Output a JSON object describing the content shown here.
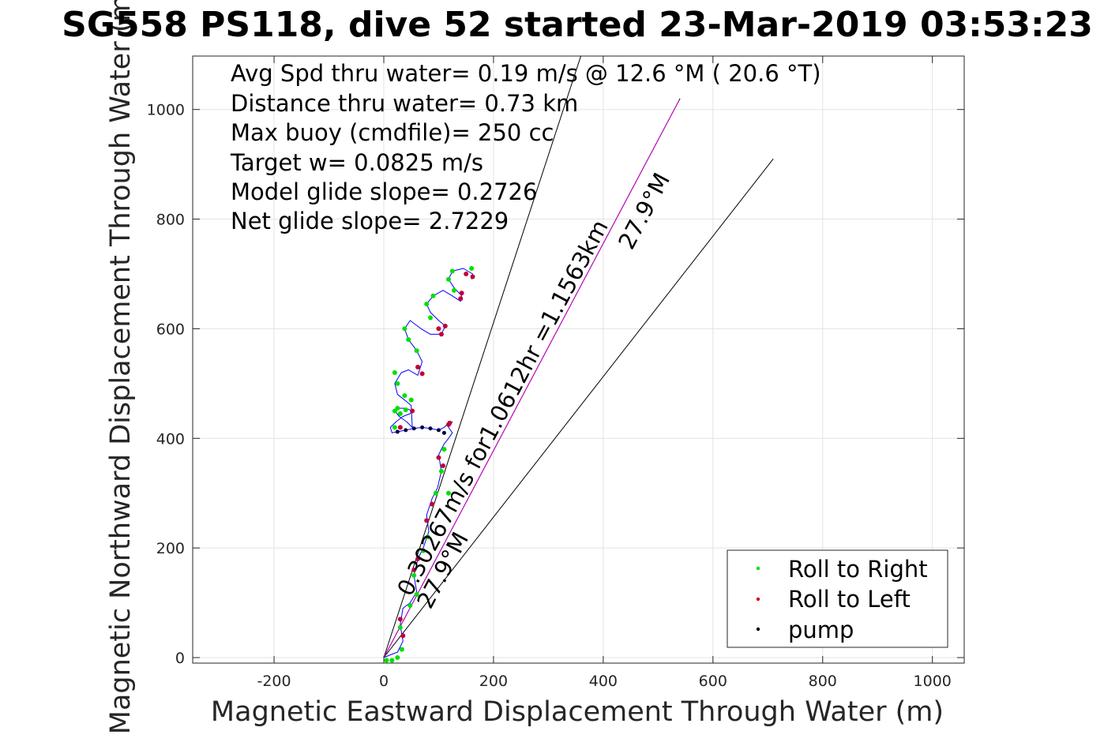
{
  "chart_data": {
    "type": "line",
    "title": "SG558 PS118, dive 52 started 23-Mar-2019 03:53:23",
    "xlabel": "Magnetic Eastward Displacement Through Water (m)",
    "ylabel": "Magnetic Northward Displacement Through Water (m)",
    "xlim": [
      -350,
      1060
    ],
    "ylim": [
      -10,
      1100
    ],
    "xticks": [
      -200,
      0,
      200,
      400,
      600,
      800,
      1000
    ],
    "yticks": [
      0,
      200,
      400,
      600,
      800,
      1000
    ],
    "xtick_labels": [
      "-200",
      "0",
      "200",
      "400",
      "600",
      "800",
      "1000"
    ],
    "ytick_labels": [
      "0",
      "200",
      "400",
      "600",
      "800",
      "1000"
    ],
    "grid": true,
    "stats": [
      "Avg Spd thru water=  0.19 m/s @  12.6 °M ( 20.6 °T)",
      "Distance thru water=  0.73 km",
      "Max buoy (cmdfile)= 250 cc",
      "Target w= 0.0825 m/s",
      "Model glide slope= 0.2726",
      "Net glide slope= 2.7229"
    ],
    "annotations": {
      "current": "0.30267m/s for1.0612hr =1.1563km",
      "current_heading": "27.9°M",
      "course_heading": "27.9°M"
    },
    "legend": {
      "placement": "bottom-right",
      "entries": [
        {
          "label": "Roll to Right",
          "color": "#00e000"
        },
        {
          "label": "Roll to Left",
          "color": "#e00000"
        },
        {
          "label": "pump",
          "color": "#000000"
        }
      ]
    },
    "reference_lines": [
      {
        "name": "bearing-line-left",
        "x": [
          0,
          360
        ],
        "y": [
          0,
          1100
        ]
      },
      {
        "name": "current-vector-line",
        "x": [
          0,
          540
        ],
        "y": [
          0,
          1020
        ]
      },
      {
        "name": "bearing-line-right",
        "x": [
          0,
          710
        ],
        "y": [
          0,
          910
        ]
      }
    ],
    "track": {
      "name": "glider track",
      "x": [
        0,
        12,
        25,
        35,
        30,
        35,
        48,
        60,
        55,
        62,
        72,
        82,
        78,
        88,
        98,
        105,
        100,
        110,
        118,
        125,
        118,
        120,
        125,
        118,
        110,
        100,
        85,
        70,
        55,
        40,
        25,
        15,
        12,
        22,
        35,
        48,
        52,
        40,
        25,
        20,
        28,
        42,
        52,
        50,
        38,
        25,
        20,
        32,
        45,
        62,
        70,
        60,
        45,
        38,
        48,
        68,
        85,
        105,
        112,
        100,
        85,
        78,
        90,
        108,
        125,
        140,
        142,
        128,
        118,
        125,
        145,
        162,
        160
      ],
      "y": [
        0,
        5,
        10,
        30,
        60,
        90,
        100,
        120,
        150,
        180,
        200,
        230,
        260,
        290,
        310,
        340,
        370,
        390,
        400,
        410,
        420,
        425,
        430,
        428,
        420,
        415,
        418,
        420,
        418,
        415,
        412,
        410,
        420,
        430,
        440,
        445,
        450,
        455,
        455,
        450,
        440,
        430,
        420,
        460,
        470,
        480,
        500,
        520,
        525,
        515,
        540,
        560,
        580,
        600,
        615,
        600,
        590,
        590,
        605,
        615,
        630,
        645,
        660,
        670,
        660,
        650,
        660,
        675,
        690,
        705,
        710,
        700,
        690
      ]
    },
    "roll_right_points": {
      "x": [
        5,
        15,
        25,
        33,
        30,
        48,
        60,
        55,
        72,
        80,
        95,
        105,
        110,
        118,
        20,
        30,
        40,
        25,
        20,
        50,
        38,
        25,
        20,
        60,
        45,
        38,
        85,
        78,
        90,
        128,
        118,
        125,
        160
      ],
      "y": [
        -5,
        -5,
        0,
        15,
        55,
        95,
        115,
        150,
        195,
        220,
        300,
        340,
        380,
        300,
        420,
        445,
        452,
        455,
        450,
        470,
        478,
        500,
        520,
        560,
        580,
        600,
        620,
        645,
        660,
        670,
        690,
        705,
        710
      ]
    },
    "roll_left_points": {
      "x": [
        35,
        30,
        55,
        62,
        78,
        88,
        100,
        108,
        118,
        120,
        30,
        52,
        70,
        62,
        105,
        112,
        100,
        140,
        142,
        162,
        150
      ],
      "y": [
        40,
        70,
        160,
        180,
        250,
        280,
        365,
        350,
        425,
        428,
        420,
        450,
        518,
        530,
        590,
        605,
        600,
        655,
        665,
        695,
        700
      ]
    },
    "pump_points": {
      "x": [
        25,
        40,
        55,
        70,
        85,
        100,
        110
      ],
      "y": [
        412,
        415,
        418,
        420,
        418,
        415,
        410
      ]
    }
  }
}
